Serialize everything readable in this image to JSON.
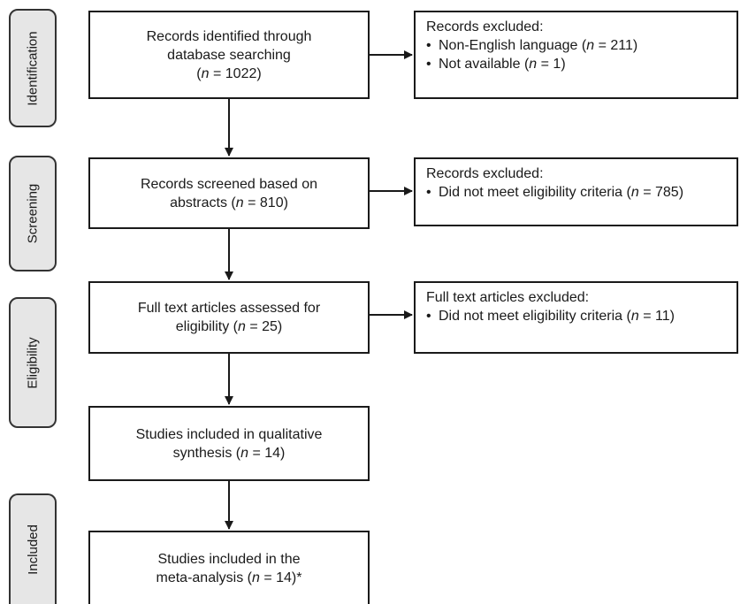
{
  "phases": {
    "identification": "Identification",
    "screening": "Screening",
    "eligibility": "Eligibility",
    "included": "Included"
  },
  "main_boxes": {
    "identified": {
      "line1": "Records identified through",
      "line2": "database searching",
      "n_label": "n",
      "eq_value": " = 1022",
      "open": "(",
      "close": ")"
    },
    "screened": {
      "line1": "Records screened based on",
      "line2_prefix": "abstracts (",
      "n_label": "n",
      "eq_value": " = 810)"
    },
    "full_text": {
      "line1": "Full text articles assessed for",
      "line2_prefix": "eligibility (",
      "n_label": "n",
      "eq_value": " = 25)"
    },
    "qualitative": {
      "line1": "Studies included in qualitative",
      "line2_prefix": "synthesis (",
      "n_label": "n",
      "eq_value": " = 14)"
    },
    "meta": {
      "line1": "Studies included in the",
      "line2_prefix": "meta-analysis (",
      "n_label": "n",
      "eq_value": " = 14)*"
    }
  },
  "exclusion_boxes": {
    "identification": {
      "title": "Records excluded:",
      "items": [
        {
          "prefix": "Non-English language (",
          "n_label": "n",
          "eq_value": " = 211)"
        },
        {
          "prefix": "Not available (",
          "n_label": "n",
          "eq_value": " = 1)"
        }
      ]
    },
    "screening": {
      "title": "Records excluded:",
      "items": [
        {
          "prefix": "Did not meet eligibility criteria (",
          "n_label": "n",
          "eq_value": " = 785)"
        }
      ]
    },
    "full_text": {
      "title": "Full text articles excluded:",
      "items": [
        {
          "prefix": "Did not meet eligibility criteria (",
          "n_label": "n",
          "eq_value": " = 11)"
        }
      ]
    }
  }
}
